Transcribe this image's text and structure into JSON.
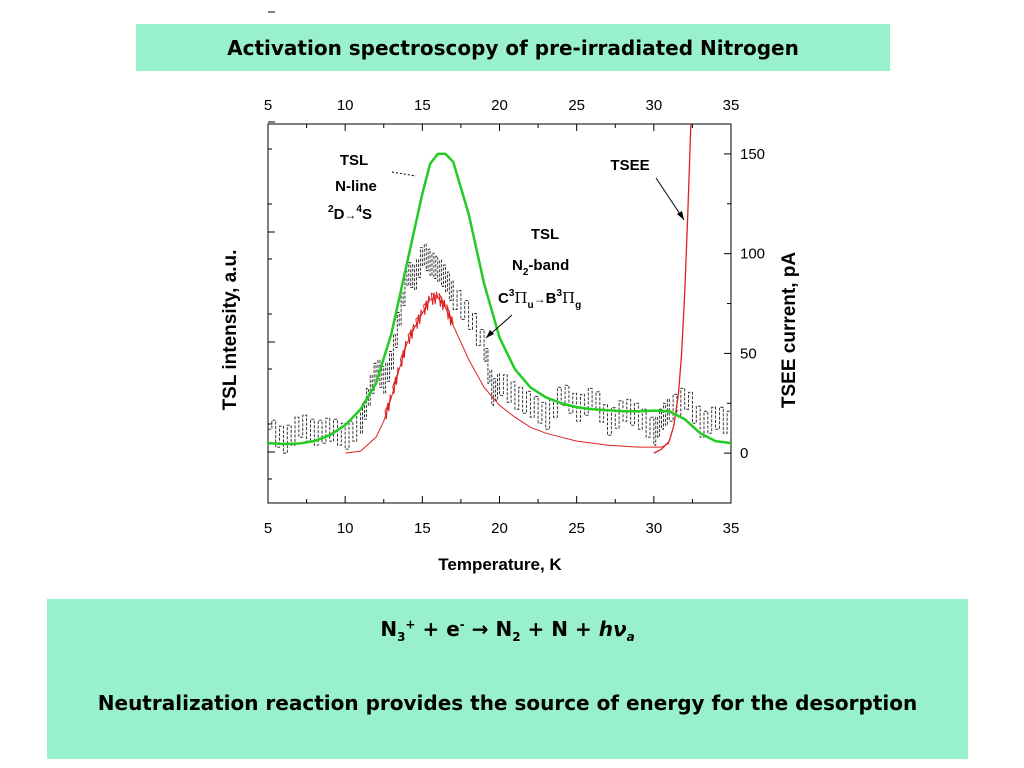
{
  "slide": {
    "title": "Activation spectroscopy of pre-irradiated Nitrogen",
    "equation": {
      "reactant": "N",
      "reactant_sub": "3",
      "reactant_sup": "+",
      "plus1": "+",
      "electron": "e",
      "electron_sup": "-",
      "arrow": "→",
      "product1": "N",
      "product1_sub": "2",
      "plus2": "+ N +",
      "photon_h": "h",
      "photon_nu": "ν",
      "photon_sub": "a"
    },
    "description": "Neutralization reaction provides the source of energy for the desorption",
    "colors": {
      "box": "#99f0cc",
      "tsl_n_line": "#22cc22",
      "tsee": "#dd2222",
      "tsl_n2_band": "#222222"
    }
  },
  "chart_data": {
    "type": "line",
    "xlabel": "Temperature, K",
    "ylabel_left": "TSL intensity, a.u.",
    "ylabel_right": "TSEE current, pA",
    "xlim": [
      5,
      35
    ],
    "x_ticks": [
      "5",
      "10",
      "15",
      "20",
      "25",
      "30",
      "35"
    ],
    "x_ticks_top": [
      "5",
      "10",
      "15",
      "20",
      "25",
      "30",
      "35"
    ],
    "ylim_right": [
      -25,
      165
    ],
    "y_ticks_right": [
      "0",
      "50",
      "100",
      "150"
    ],
    "series": [
      {
        "key": "tsl_n_line",
        "color": "#22cc22",
        "points": [
          [
            5.0,
            5
          ],
          [
            6,
            4.6
          ],
          [
            7,
            4.8
          ],
          [
            8,
            6
          ],
          [
            9,
            9
          ],
          [
            10,
            14
          ],
          [
            11,
            22
          ],
          [
            12,
            35
          ],
          [
            13,
            60
          ],
          [
            14,
            95
          ],
          [
            15,
            130
          ],
          [
            15.5,
            145
          ],
          [
            16,
            150
          ],
          [
            16.5,
            150
          ],
          [
            17,
            146
          ],
          [
            18,
            120
          ],
          [
            19,
            85
          ],
          [
            20,
            58
          ],
          [
            21,
            42
          ],
          [
            22,
            33
          ],
          [
            23,
            28
          ],
          [
            24,
            25
          ],
          [
            25,
            23
          ],
          [
            26,
            22
          ],
          [
            27,
            21.5
          ],
          [
            28,
            21
          ],
          [
            29,
            21
          ],
          [
            30,
            21.3
          ],
          [
            31,
            21
          ],
          [
            32,
            17
          ],
          [
            33,
            10
          ],
          [
            34,
            6
          ],
          [
            35,
            5
          ]
        ]
      },
      {
        "key": "tsl_n2_band",
        "color": "#222222",
        "points": [
          [
            5.0,
            12
          ],
          [
            6,
            6
          ],
          [
            7,
            14
          ],
          [
            8,
            10
          ],
          [
            9,
            12
          ],
          [
            10,
            8
          ],
          [
            11,
            16
          ],
          [
            11.5,
            30
          ],
          [
            12,
            42
          ],
          [
            12.5,
            36
          ],
          [
            13,
            48
          ],
          [
            13.5,
            70
          ],
          [
            14,
            90
          ],
          [
            14.5,
            88
          ],
          [
            15,
            100
          ],
          [
            15.5,
            95
          ],
          [
            16,
            92
          ],
          [
            16.5,
            87
          ],
          [
            17,
            78
          ],
          [
            18,
            68
          ],
          [
            19,
            52
          ],
          [
            19.5,
            30
          ],
          [
            20,
            35
          ],
          [
            21,
            28
          ],
          [
            22,
            24
          ],
          [
            23,
            18
          ],
          [
            24,
            30
          ],
          [
            25,
            22
          ],
          [
            26,
            28
          ],
          [
            27,
            15
          ],
          [
            28,
            22
          ],
          [
            29,
            18
          ],
          [
            30,
            10
          ],
          [
            30.5,
            18
          ],
          [
            31,
            22
          ],
          [
            32,
            28
          ],
          [
            33,
            14
          ],
          [
            34,
            18
          ],
          [
            35,
            14
          ]
        ]
      },
      {
        "key": "tsl_red",
        "color": "#dd2222",
        "points": [
          [
            10.0,
            0
          ],
          [
            11,
            1
          ],
          [
            12,
            8
          ],
          [
            12.5,
            16
          ],
          [
            13,
            28
          ],
          [
            13.5,
            42
          ],
          [
            14,
            55
          ],
          [
            14.5,
            63
          ],
          [
            15,
            70
          ],
          [
            15.5,
            77
          ],
          [
            16,
            78
          ],
          [
            16.5,
            73
          ],
          [
            17,
            64
          ],
          [
            18,
            47
          ],
          [
            19,
            33
          ],
          [
            20,
            24
          ],
          [
            21,
            18
          ],
          [
            22,
            13
          ],
          [
            23,
            10
          ],
          [
            24,
            8
          ],
          [
            25,
            6
          ],
          [
            26,
            5
          ],
          [
            27,
            4
          ],
          [
            28,
            3.5
          ],
          [
            29,
            3
          ],
          [
            30,
            3
          ],
          [
            30.5,
            3
          ],
          [
            31,
            5
          ]
        ]
      },
      {
        "key": "tsee",
        "color": "#dd2222",
        "points": [
          [
            30,
            0
          ],
          [
            30.5,
            2
          ],
          [
            31,
            6
          ],
          [
            31.3,
            14
          ],
          [
            31.6,
            30
          ],
          [
            31.8,
            50
          ],
          [
            32.0,
            80
          ],
          [
            32.2,
            120
          ],
          [
            32.4,
            165
          ]
        ]
      }
    ],
    "annotations": [
      {
        "key": "tsl_nline",
        "lines": [
          "TSL",
          "N-line"
        ]
      },
      {
        "key": "tsl_trans",
        "pre_sup": "2",
        "left": "D",
        "arrow": "→",
        "mid_sup": "4",
        "right": "S"
      },
      {
        "key": "tsee",
        "text": "TSEE"
      },
      {
        "key": "tsl_band",
        "lines": [
          "TSL"
        ]
      },
      {
        "key": "n2band",
        "base": "N",
        "sub": "2",
        "rest": "-band"
      },
      {
        "key": "n2trans",
        "c": "C",
        "c_sup": "3",
        "pi1": "Π",
        "pi1_sub": "u",
        "arrow": "→",
        "b": "B",
        "b_sup": "3",
        "pi2": "Π",
        "pi2_sub": "g"
      }
    ]
  }
}
